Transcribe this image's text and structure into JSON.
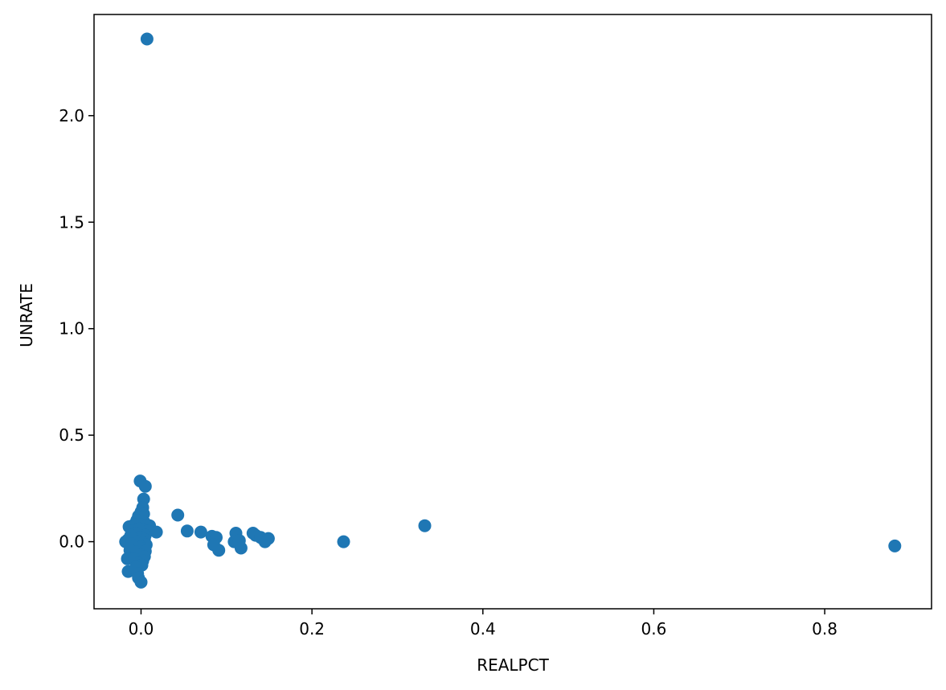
{
  "chart_data": {
    "type": "scatter",
    "xlabel": "REALPCT",
    "ylabel": "UNRATE",
    "xlim": [
      -0.055,
      0.925
    ],
    "ylim": [
      -0.315,
      2.475
    ],
    "xticks": [
      0.0,
      0.2,
      0.4,
      0.6,
      0.8
    ],
    "xtick_labels": [
      "0.0",
      "0.2",
      "0.4",
      "0.6",
      "0.8"
    ],
    "yticks": [
      0.0,
      0.5,
      1.0,
      1.5,
      2.0
    ],
    "ytick_labels": [
      "0.0",
      "0.5",
      "1.0",
      "1.5",
      "2.0"
    ],
    "grid": false,
    "marker_color": "#1f77b4",
    "series": [
      {
        "points": [
          [
            0.007,
            2.36
          ],
          [
            -0.001,
            0.285
          ],
          [
            0.005,
            0.26
          ],
          [
            0.003,
            0.2
          ],
          [
            0.002,
            0.16
          ],
          [
            0.0,
            0.14
          ],
          [
            0.003,
            0.13
          ],
          [
            -0.003,
            0.12
          ],
          [
            0.001,
            0.11
          ],
          [
            -0.005,
            0.1
          ],
          [
            0.004,
            0.09
          ],
          [
            -0.008,
            0.08
          ],
          [
            0.0,
            0.08
          ],
          [
            0.006,
            0.075
          ],
          [
            0.01,
            0.075
          ],
          [
            -0.014,
            0.07
          ],
          [
            -0.002,
            0.06
          ],
          [
            0.003,
            0.055
          ],
          [
            0.008,
            0.05
          ],
          [
            -0.01,
            0.05
          ],
          [
            0.018,
            0.045
          ],
          [
            -0.006,
            0.04
          ],
          [
            0.002,
            0.035
          ],
          [
            -0.012,
            0.03
          ],
          [
            0.005,
            0.03
          ],
          [
            -0.001,
            0.02
          ],
          [
            -0.009,
            0.015
          ],
          [
            0.004,
            0.01
          ],
          [
            -0.015,
            0.01
          ],
          [
            -0.018,
            0.0
          ],
          [
            -0.004,
            0.0
          ],
          [
            0.002,
            -0.005
          ],
          [
            -0.011,
            -0.01
          ],
          [
            0.006,
            -0.015
          ],
          [
            -0.007,
            -0.02
          ],
          [
            0.0,
            -0.025
          ],
          [
            0.003,
            -0.035
          ],
          [
            -0.013,
            -0.04
          ],
          [
            0.005,
            -0.045
          ],
          [
            -0.005,
            -0.05
          ],
          [
            -0.001,
            -0.06
          ],
          [
            0.004,
            -0.07
          ],
          [
            -0.016,
            -0.08
          ],
          [
            -0.008,
            -0.08
          ],
          [
            0.002,
            -0.09
          ],
          [
            -0.003,
            -0.1
          ],
          [
            0.001,
            -0.11
          ],
          [
            -0.006,
            -0.12
          ],
          [
            -0.015,
            -0.14
          ],
          [
            -0.004,
            -0.15
          ],
          [
            -0.003,
            -0.17
          ],
          [
            0.0,
            -0.19
          ],
          [
            0.043,
            0.125
          ],
          [
            0.054,
            0.05
          ],
          [
            0.07,
            0.045
          ],
          [
            0.083,
            0.025
          ],
          [
            0.088,
            0.02
          ],
          [
            0.085,
            -0.015
          ],
          [
            0.091,
            -0.04
          ],
          [
            0.109,
            0.0
          ],
          [
            0.111,
            0.04
          ],
          [
            0.115,
            0.005
          ],
          [
            0.117,
            -0.03
          ],
          [
            0.131,
            0.04
          ],
          [
            0.134,
            0.03
          ],
          [
            0.14,
            0.02
          ],
          [
            0.145,
            0.0
          ],
          [
            0.149,
            0.015
          ],
          [
            0.237,
            0.0
          ],
          [
            0.332,
            0.075
          ],
          [
            0.882,
            -0.02
          ]
        ]
      }
    ]
  }
}
